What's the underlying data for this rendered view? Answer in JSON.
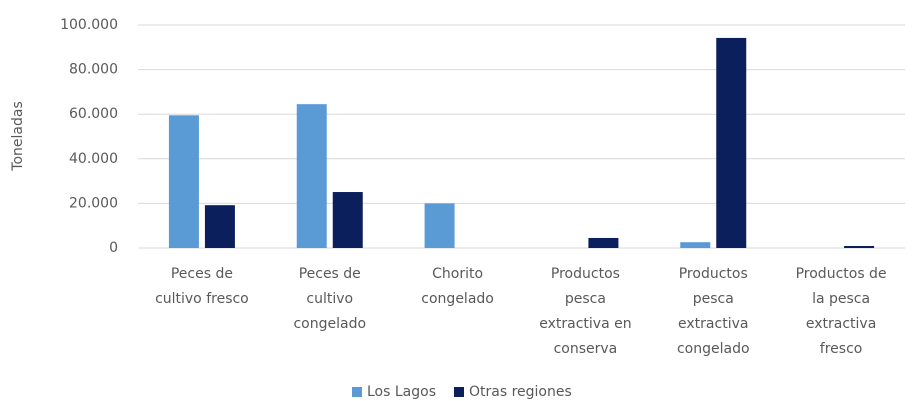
{
  "chart_data": {
    "type": "bar",
    "y_label": "Toneladas",
    "categories": [
      "Peces de\ncultivo fresco",
      "Peces de\ncultivo\ncongelado",
      "Chorito\ncongelado",
      "Productos\npesca\nextractiva en\nconserva",
      "Productos\npesca\nextractiva\ncongelado",
      "Productos de\nla pesca\nextractiva\nfresco"
    ],
    "series": [
      {
        "name": "Los Lagos",
        "color": "#5b9bd5",
        "values": [
          59500,
          64500,
          20000,
          0,
          2600,
          0
        ]
      },
      {
        "name": "Otras regiones",
        "color": "#0b1f5c",
        "values": [
          19200,
          25100,
          0,
          4500,
          94200,
          900
        ]
      }
    ],
    "ylim": [
      0,
      100000
    ],
    "yticks": [
      0,
      {
        "value": 20000,
        "label": "20.000"
      },
      {
        "value": 40000,
        "label": "40.000"
      },
      {
        "value": 60000,
        "label": "60.000"
      },
      {
        "value": 80000,
        "label": "80.000"
      },
      {
        "value": 100000,
        "label": "100.000"
      }
    ],
    "grid": true,
    "legend": "bottom"
  }
}
